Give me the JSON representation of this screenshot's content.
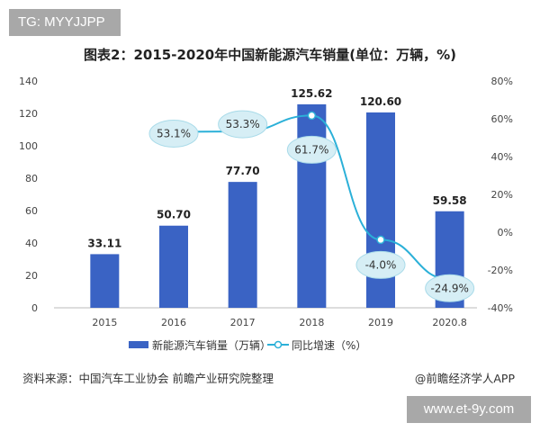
{
  "watermark_top": "TG: MYYJJPP",
  "watermark_bottom": "www.et-9y.com",
  "source": "资料来源：中国汽车工业协会 前瞻产业研究院整理",
  "credit": "@前瞻经济学人APP",
  "chart_data": {
    "type": "bar+line",
    "title": "图表2：2015-2020年中国新能源汽车销量(单位：万辆，%)",
    "categories": [
      "2015",
      "2016",
      "2017",
      "2018",
      "2019",
      "2020.8"
    ],
    "series": [
      {
        "name": "新能源汽车销量（万辆）",
        "type": "bar",
        "axis": "left",
        "color": "#3a63c4",
        "values": [
          33.11,
          50.7,
          77.7,
          125.62,
          120.6,
          59.58
        ],
        "labels": [
          "33.11",
          "50.70",
          "77.70",
          "125.62",
          "120.60",
          "59.58"
        ]
      },
      {
        "name": "同比增速（%）",
        "type": "line",
        "axis": "right",
        "color": "#2bb0d8",
        "values": [
          null,
          53.1,
          53.3,
          61.7,
          -4.0,
          -24.9
        ],
        "labels": [
          "",
          "53.1%",
          "53.3%",
          "61.7%",
          "-4.0%",
          "-24.9%"
        ]
      }
    ],
    "left_axis": {
      "range": [
        0,
        140
      ],
      "ticks": [
        "0",
        "20",
        "40",
        "60",
        "80",
        "100",
        "120",
        "140"
      ]
    },
    "right_axis": {
      "range": [
        -40,
        80
      ],
      "ticks": [
        "-40%",
        "-20%",
        "0%",
        "20%",
        "40%",
        "60%",
        "80%"
      ]
    },
    "grid": false,
    "legend_position": "bottom"
  }
}
